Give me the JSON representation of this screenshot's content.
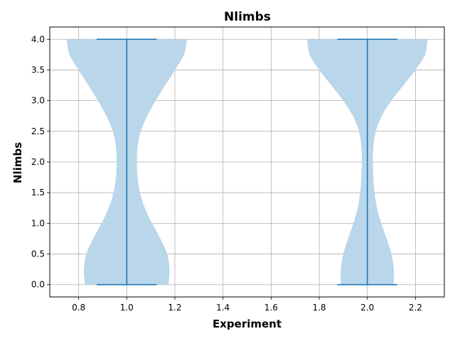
{
  "chart_data": {
    "type": "violin",
    "title": "Nlimbs",
    "xlabel": "Experiment",
    "ylabel": "Nlimbs",
    "xlim": [
      0.68,
      2.32
    ],
    "ylim": [
      -0.2,
      4.2
    ],
    "xticks": [
      "0.8",
      "1.0",
      "1.2",
      "1.4",
      "1.6",
      "1.8",
      "2.0",
      "2.2"
    ],
    "yticks": [
      "0.0",
      "0.5",
      "1.0",
      "1.5",
      "2.0",
      "2.5",
      "3.0",
      "3.5",
      "4.0"
    ],
    "grid": true,
    "colors": {
      "body": "#bad6ea",
      "lines": "#1f77b4"
    },
    "series": [
      {
        "position": 1.0,
        "min": 0.0,
        "max": 4.0,
        "profile": [
          [
            0.0,
            0.174
          ],
          [
            0.25,
            0.178
          ],
          [
            0.5,
            0.168
          ],
          [
            0.75,
            0.14
          ],
          [
            1.0,
            0.105
          ],
          [
            1.25,
            0.075
          ],
          [
            1.5,
            0.055
          ],
          [
            1.75,
            0.045
          ],
          [
            2.0,
            0.042
          ],
          [
            2.25,
            0.045
          ],
          [
            2.5,
            0.058
          ],
          [
            2.75,
            0.085
          ],
          [
            3.0,
            0.12
          ],
          [
            3.25,
            0.16
          ],
          [
            3.5,
            0.2
          ],
          [
            3.75,
            0.238
          ],
          [
            4.0,
            0.25
          ]
        ]
      },
      {
        "position": 2.0,
        "min": 0.0,
        "max": 4.0,
        "profile": [
          [
            0.0,
            0.11
          ],
          [
            0.25,
            0.11
          ],
          [
            0.5,
            0.1
          ],
          [
            0.75,
            0.08
          ],
          [
            1.0,
            0.058
          ],
          [
            1.25,
            0.04
          ],
          [
            1.5,
            0.03
          ],
          [
            1.75,
            0.025
          ],
          [
            2.0,
            0.023
          ],
          [
            2.25,
            0.025
          ],
          [
            2.5,
            0.035
          ],
          [
            2.75,
            0.06
          ],
          [
            3.0,
            0.1
          ],
          [
            3.25,
            0.15
          ],
          [
            3.5,
            0.2
          ],
          [
            3.75,
            0.24
          ],
          [
            4.0,
            0.25
          ]
        ]
      }
    ]
  }
}
